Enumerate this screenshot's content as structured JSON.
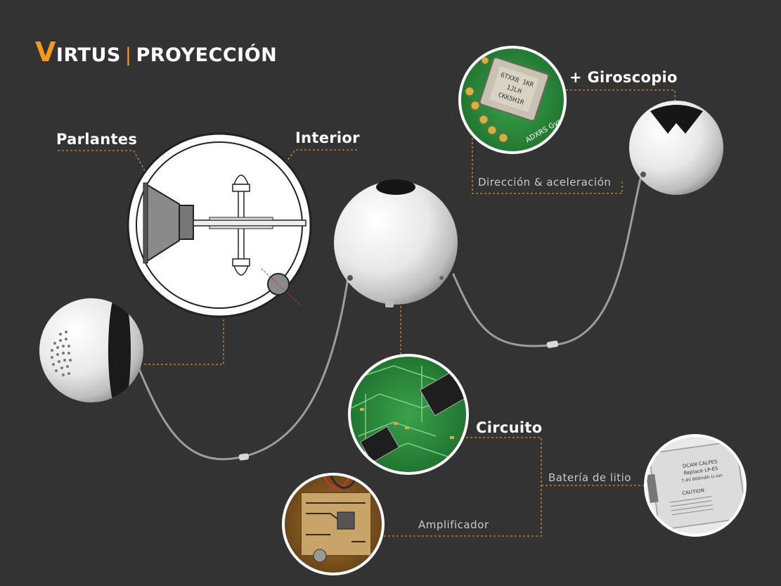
{
  "brand": {
    "initial": "V",
    "name_rest": "IRTUS",
    "separator": "|",
    "section": "PROYECCIÓN"
  },
  "labels": {
    "parlantes": "Parlantes",
    "interior": "Interior",
    "giroscopio": "+ Giroscopio",
    "direccion": "Dirección & aceleración",
    "circuito": "Circuito",
    "bateria": "Batería de litio",
    "amplificador": "Amplificador"
  },
  "gyro_chip": {
    "line1": "6TXX8 1KR",
    "line2": "1JLH",
    "line3": "CKK5H1R",
    "pcb_text": "ADXRS Gyr"
  },
  "battery": {
    "line1": "DCAM CALPES",
    "line2": "Replace LP-E5",
    "line3": "7.4V 800mAh Li-ion",
    "caution": "CAUTION"
  },
  "colors": {
    "background": "#333333",
    "accent": "#f39a1e",
    "leader": "#d68a2c",
    "text": "#ffffff",
    "muted_text": "#c9c9c9"
  }
}
